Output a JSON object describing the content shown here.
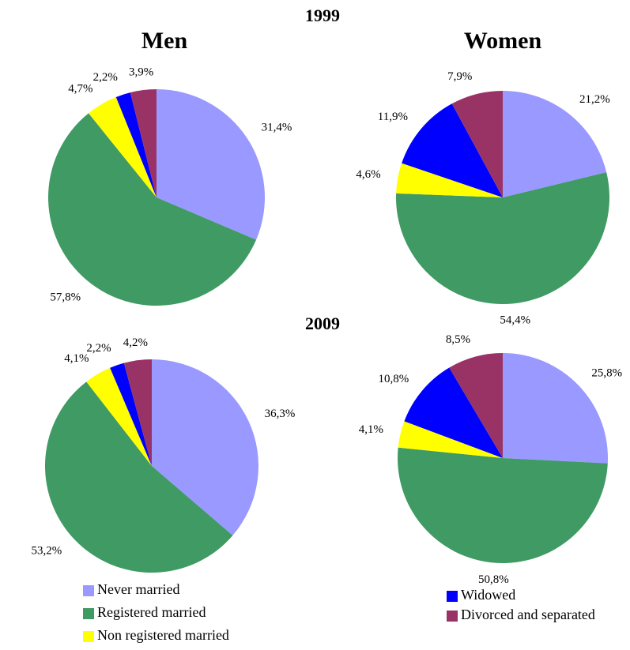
{
  "header": {
    "years": [
      "1999",
      "2009"
    ],
    "columns": [
      "Men",
      "Women"
    ]
  },
  "legend": {
    "categories": [
      "Never married",
      "Registered married",
      "Non registered married",
      "Widowed",
      "Divorced and separated"
    ],
    "colors": [
      "#9999ff",
      "#3f9a63",
      "#ffff00",
      "#0000ff",
      "#993366"
    ]
  },
  "chart_data": [
    {
      "type": "pie",
      "values": [
        31.4,
        57.8,
        4.7,
        2.2,
        3.9
      ],
      "value_labels": [
        "31,4%",
        "57,8%",
        "4,7%",
        "2,2%",
        "3,9%"
      ]
    },
    {
      "type": "pie",
      "values": [
        21.2,
        54.4,
        4.6,
        11.9,
        7.9
      ],
      "value_labels": [
        "21,2%",
        "54,4%",
        "4,6%",
        "11,9%",
        "7,9%"
      ]
    },
    {
      "type": "pie",
      "values": [
        36.3,
        53.2,
        4.1,
        2.2,
        4.2
      ],
      "value_labels": [
        "36,3%",
        "53,2%",
        "4,1%",
        "2,2%",
        "4,2%"
      ]
    },
    {
      "type": "pie",
      "values": [
        25.8,
        50.8,
        4.1,
        10.8,
        8.5
      ],
      "value_labels": [
        "25,8%",
        "50,8%",
        "4,1%",
        "10,8%",
        "8,5%"
      ]
    }
  ]
}
